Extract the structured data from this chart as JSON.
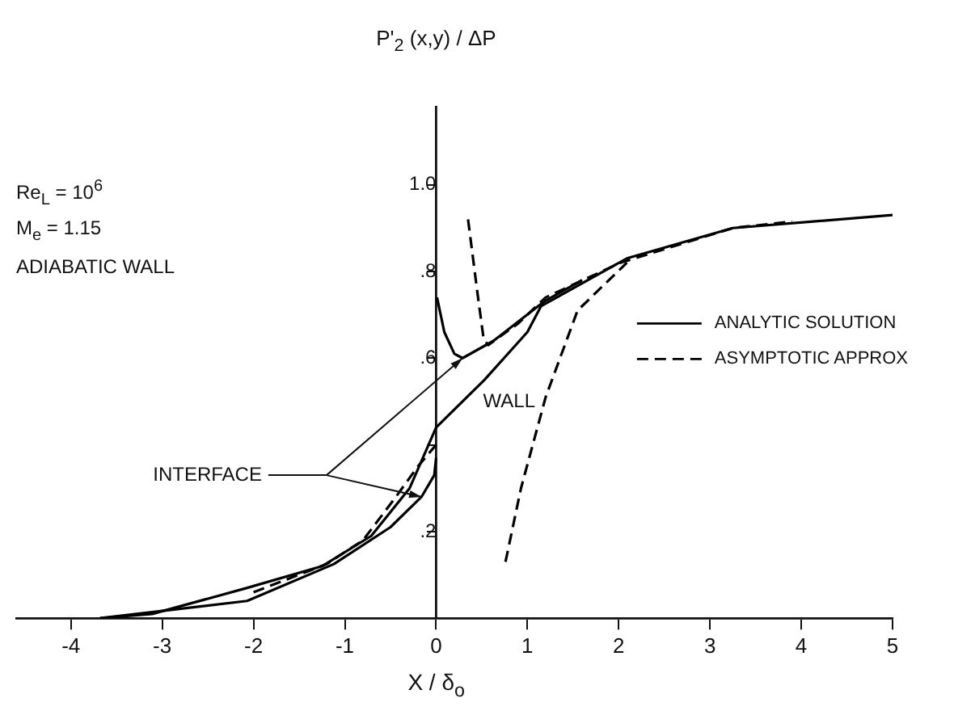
{
  "chart_data": {
    "type": "line",
    "xlabel": "X / δ$_{o}$",
    "ylabel": "P'$_{2}$ (x,y) / ΔP",
    "xlim": [
      -4.6,
      5
    ],
    "xticks": [
      -4,
      -3,
      -2,
      -1,
      0,
      1,
      2,
      3,
      4,
      5
    ],
    "ylim": [
      0,
      1.18
    ],
    "yticks": [
      {
        "value": 0.2,
        "label": ".2"
      },
      {
        "value": 0.4,
        "label": null
      },
      {
        "value": 0.6,
        "label": ".6"
      },
      {
        "value": 0.8,
        "label": ".8"
      },
      {
        "value": 1.0,
        "label": "1.0"
      }
    ],
    "grid": false,
    "legend": "right",
    "marker": "none",
    "series": [
      {
        "name": "ANALYTIC SOLUTION",
        "color": "#000000",
        "line_style": "solid",
        "x": [
          -3.68,
          -3.11,
          -2.07,
          -1.25,
          -0.71,
          -0.29,
          0,
          0.53,
          1.0,
          1.15,
          2.09,
          3.25,
          5.0
        ],
        "values": [
          0,
          0.01,
          0.07,
          0.12,
          0.19,
          0.3,
          0.44,
          0.55,
          0.66,
          0.72,
          0.83,
          0.9,
          0.93
        ]
      },
      {
        "color": "#000000",
        "line_style": "solid",
        "x": [
          -3.68,
          -2.07,
          -1.12,
          -0.5,
          -0.16,
          -0.02,
          0,
          null,
          0.01,
          0.09,
          0.2,
          0.29,
          0.63,
          1.18,
          1.6
        ],
        "values": [
          0,
          0.04,
          0.125,
          0.21,
          0.28,
          0.33,
          0.37,
          null,
          0.74,
          0.66,
          0.61,
          0.6,
          0.64,
          0.73,
          0.78
        ]
      },
      {
        "name": "ASYMPTOTIC APPROX",
        "color": "#000000",
        "line_style": "dashed",
        "x": [
          -2.0,
          -1.2,
          -0.8,
          -0.44,
          -0.2,
          0
        ],
        "values": [
          0.06,
          0.125,
          0.18,
          0.28,
          0.35,
          0.4
        ]
      },
      {
        "color": "#000000",
        "line_style": "dashed",
        "x": [
          0.35,
          0.45,
          0.52,
          0.57,
          0.9,
          1.2,
          2.02,
          3.25,
          3.9
        ],
        "values": [
          0.92,
          0.755,
          0.645,
          0.63,
          0.68,
          0.74,
          0.82,
          0.9,
          0.915
        ]
      },
      {
        "color": "#000000",
        "line_style": "dashed",
        "x": [
          0.76,
          0.93,
          1.2,
          1.55,
          2.09
        ],
        "values": [
          0.13,
          0.3,
          0.51,
          0.71,
          0.82
        ]
      }
    ],
    "annotations": [
      "Re$_{L}$ = 10$^{6}$",
      "M$_{e}$ = 1.15",
      "ADIABATIC WALL",
      "WALL",
      "INTERFACE"
    ]
  }
}
